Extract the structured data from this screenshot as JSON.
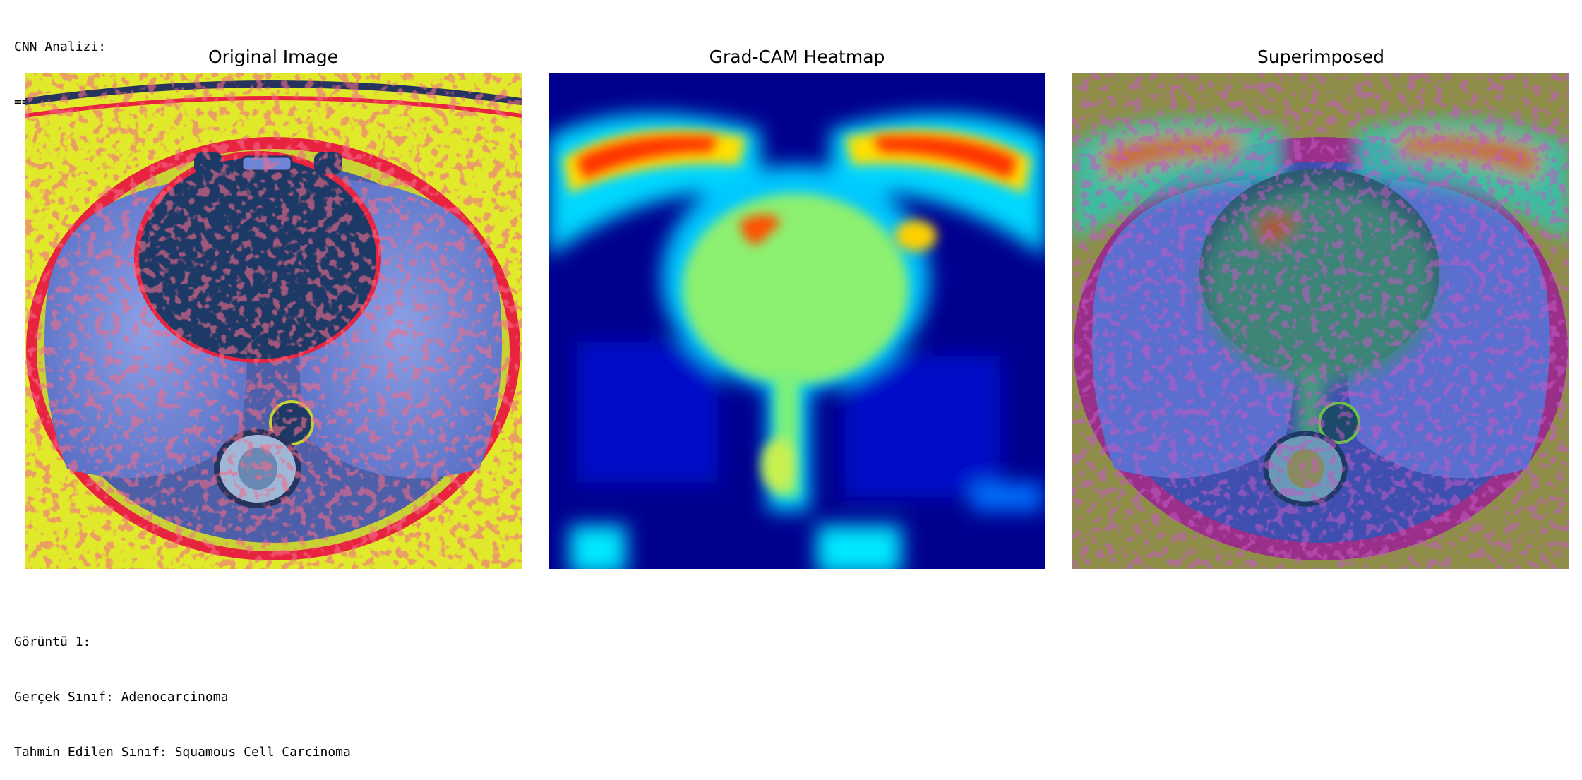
{
  "output": {
    "header_title": "CNN Analizi:",
    "separator": "==================================================",
    "panels": [
      {
        "title": "Original Image"
      },
      {
        "title": "Grad-CAM Heatmap"
      },
      {
        "title": "Superimposed"
      }
    ],
    "footer_lines": [
      "Görüntü 1:",
      "Gerçek Sınıf: Adenocarcinoma",
      "Tahmin Edilen Sınıf: Squamous Cell Carcinoma"
    ]
  },
  "colors": {
    "jet_background": "#00008f",
    "lung_tissue": "#6f86d8",
    "heart_dark": "#1d3a66",
    "body_yellow": "#e6ee22",
    "body_red": "#e8233f"
  },
  "icons": [
    "ct-scan-image",
    "heatmap-image",
    "superimposed-image"
  ]
}
